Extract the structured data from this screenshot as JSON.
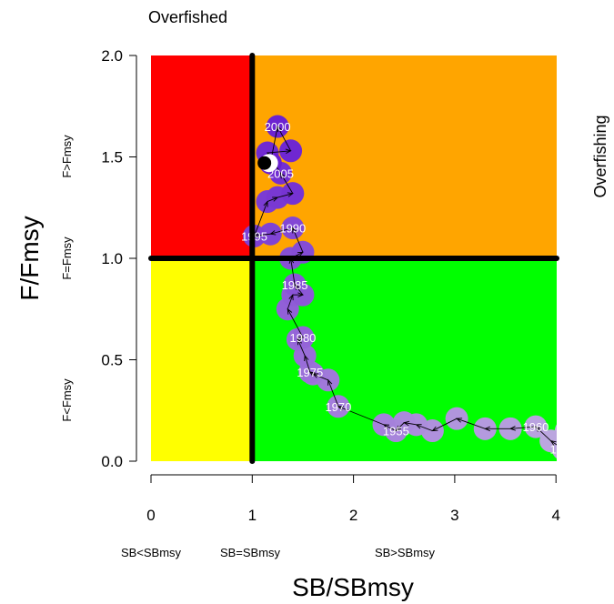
{
  "chart_data": {
    "type": "scatter",
    "title": "",
    "xlabel": "SB/SBmsy",
    "ylabel": "F/Fmsy",
    "xlim": [
      0,
      4.2
    ],
    "ylim": [
      0,
      2.0
    ],
    "x_ticks": [
      "0",
      "1",
      "2",
      "3",
      "4"
    ],
    "y_ticks": [
      "0.0",
      "0.5",
      "1.0",
      "1.5",
      "2.0"
    ],
    "grid": false,
    "reference_lines": {
      "x": 1.0,
      "y": 1.0
    },
    "quadrant_colors": {
      "overfished_overfishing": "#ff0000",
      "healthy_overfishing": "#ffa500",
      "overfished_sustainable": "#ffff00",
      "healthy_sustainable": "#00ff00"
    },
    "annotations": {
      "top_left": "Overfished",
      "right_side": "Overfishing",
      "y_upper": "F>Fmsy",
      "y_middle": "F=Fmsy",
      "y_lower": "F<Fmsy",
      "x_left": "SB<SBmsy",
      "x_middle": "SB=SBmsy",
      "x_right": "SB>SBmsy"
    },
    "series": [
      {
        "color_early": "#c0aee0",
        "color_late": "#6a1fd0",
        "points": [
          {
            "x": 4.1,
            "y": 0.15,
            "label": ""
          },
          {
            "x": 4.07,
            "y": 0.06,
            "label": "1965"
          },
          {
            "x": 3.95,
            "y": 0.1,
            "label": ""
          },
          {
            "x": 3.8,
            "y": 0.17,
            "label": "1960"
          },
          {
            "x": 3.55,
            "y": 0.16,
            "label": ""
          },
          {
            "x": 3.3,
            "y": 0.16,
            "label": ""
          },
          {
            "x": 3.02,
            "y": 0.21,
            "label": ""
          },
          {
            "x": 2.78,
            "y": 0.15,
            "label": ""
          },
          {
            "x": 2.62,
            "y": 0.18,
            "label": ""
          },
          {
            "x": 2.5,
            "y": 0.19,
            "label": ""
          },
          {
            "x": 2.42,
            "y": 0.15,
            "label": "1955"
          },
          {
            "x": 2.3,
            "y": 0.18,
            "label": ""
          },
          {
            "x": 1.85,
            "y": 0.27,
            "label": "1970"
          },
          {
            "x": 1.75,
            "y": 0.4,
            "label": ""
          },
          {
            "x": 1.6,
            "y": 0.43,
            "label": ""
          },
          {
            "x": 1.57,
            "y": 0.44,
            "label": "1975"
          },
          {
            "x": 1.52,
            "y": 0.52,
            "label": ""
          },
          {
            "x": 1.45,
            "y": 0.6,
            "label": ""
          },
          {
            "x": 1.5,
            "y": 0.61,
            "label": "1980"
          },
          {
            "x": 1.35,
            "y": 0.75,
            "label": ""
          },
          {
            "x": 1.4,
            "y": 0.82,
            "label": ""
          },
          {
            "x": 1.5,
            "y": 0.82,
            "label": ""
          },
          {
            "x": 1.42,
            "y": 0.87,
            "label": "1985"
          },
          {
            "x": 1.38,
            "y": 1.0,
            "label": ""
          },
          {
            "x": 1.5,
            "y": 1.03,
            "label": ""
          },
          {
            "x": 1.4,
            "y": 1.15,
            "label": "1990"
          },
          {
            "x": 1.18,
            "y": 1.12,
            "label": ""
          },
          {
            "x": 1.02,
            "y": 1.11,
            "label": "1995"
          },
          {
            "x": 1.15,
            "y": 1.28,
            "label": ""
          },
          {
            "x": 1.25,
            "y": 1.3,
            "label": ""
          },
          {
            "x": 1.4,
            "y": 1.32,
            "label": ""
          },
          {
            "x": 1.28,
            "y": 1.42,
            "label": "2005"
          },
          {
            "x": 1.15,
            "y": 1.52,
            "label": ""
          },
          {
            "x": 1.38,
            "y": 1.53,
            "label": ""
          },
          {
            "x": 1.25,
            "y": 1.65,
            "label": "2000"
          },
          {
            "x": 1.18,
            "y": 1.47,
            "label": ""
          }
        ],
        "current": {
          "x": 1.12,
          "y": 1.47
        }
      }
    ]
  }
}
